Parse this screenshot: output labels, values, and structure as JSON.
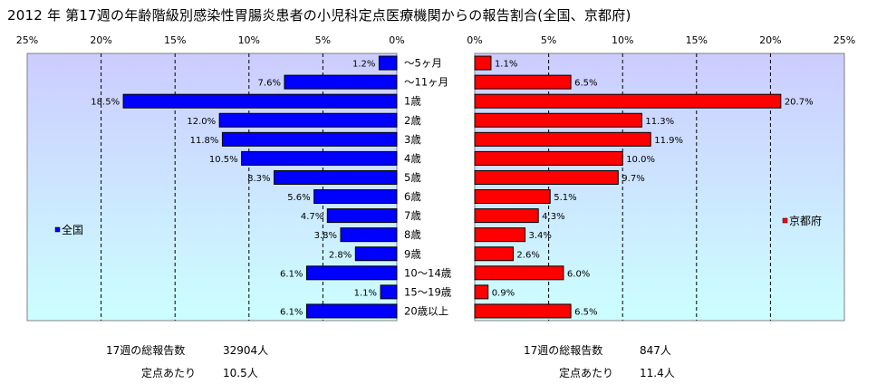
{
  "title": "2012 年 第17週の年齢階級別感染性胃腸炎患者の小児科定点医療機関からの報告割合(全国、京都府)",
  "colors": {
    "left_bar": "#0000ff",
    "right_bar": "#ff0000",
    "bar_border": "#000000",
    "plot_top": "#ccccff",
    "plot_bottom": "#ccffff"
  },
  "chart_data": [
    {
      "type": "bar",
      "orientation": "horizontal",
      "direction": "right-to-left",
      "series": [
        {
          "name": "全国",
          "values": [
            1.2,
            7.6,
            18.5,
            12.0,
            11.8,
            10.5,
            8.3,
            5.6,
            4.7,
            3.8,
            2.8,
            6.1,
            1.1,
            6.1
          ]
        }
      ],
      "value_labels": [
        "1.2%",
        "7.6%",
        "18.5%",
        "12.0%",
        "11.8%",
        "10.5%",
        "8.3%",
        "5.6%",
        "4.7%",
        "3.8%",
        "2.8%",
        "6.1%",
        "1.1%",
        "6.1%"
      ],
      "xlim": [
        0,
        25
      ],
      "xticks": [
        "25%",
        "20%",
        "15%",
        "10%",
        "5%",
        "0%"
      ],
      "grid": true,
      "legend": "left"
    },
    {
      "type": "bar",
      "orientation": "horizontal",
      "direction": "left-to-right",
      "series": [
        {
          "name": "京都府",
          "values": [
            1.1,
            6.5,
            20.7,
            11.3,
            11.9,
            10.0,
            9.7,
            5.1,
            4.3,
            3.4,
            2.6,
            6.0,
            0.9,
            6.5
          ]
        }
      ],
      "value_labels": [
        "1.1%",
        "6.5%",
        "20.7%",
        "11.3%",
        "11.9%",
        "10.0%",
        "9.7%",
        "5.1%",
        "4.3%",
        "3.4%",
        "2.6%",
        "6.0%",
        "0.9%",
        "6.5%"
      ],
      "xlim": [
        0,
        25
      ],
      "xticks": [
        "0%",
        "5%",
        "10%",
        "15%",
        "20%",
        "25%"
      ],
      "grid": true,
      "legend": "right"
    }
  ],
  "categories": [
    "～5ヶ月",
    "～11ヶ月",
    "1歳",
    "2歳",
    "3歳",
    "4歳",
    "5歳",
    "6歳",
    "7歳",
    "8歳",
    "9歳",
    "10～14歳",
    "15～19歳",
    "20歳以上"
  ],
  "stats": {
    "national": {
      "reports_label": "17週の総報告数",
      "reports_value": "32904人",
      "per_label": "定点あたり",
      "per_value": "10.5人"
    },
    "kyoto": {
      "reports_label": "17週の総報告数",
      "reports_value": "847人",
      "per_label": "定点あたり",
      "per_value": "11.4人"
    }
  }
}
